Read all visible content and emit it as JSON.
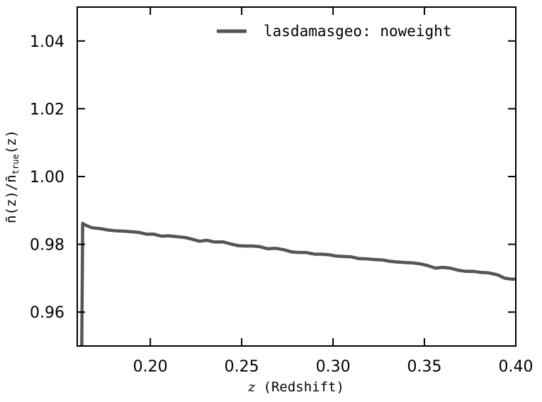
{
  "chart_data": {
    "type": "line",
    "title": "",
    "xlabel": "z (Redshift)",
    "xlabel_italic": "z",
    "xlabel_mono": " (Redshift)",
    "ylabel": "n̄(z)/n̄true(z)",
    "ylabel_main": "n̄(z)/n̄",
    "ylabel_sub": "true",
    "ylabel_end": "(z)",
    "xlim": [
      0.16,
      0.4
    ],
    "ylim": [
      0.95,
      1.05
    ],
    "xticks": [
      0.2,
      0.25,
      0.3,
      0.35,
      0.4
    ],
    "xtick_labels": [
      "0.20",
      "0.25",
      "0.30",
      "0.35",
      "0.40"
    ],
    "yticks": [
      0.96,
      0.98,
      1.0,
      1.02,
      1.04
    ],
    "ytick_labels": [
      "0.96",
      "0.98",
      "1.00",
      "1.02",
      "1.04"
    ],
    "grid": false,
    "legend_position": "top-right",
    "series": [
      {
        "name": "lasdamasgeo:  noweight",
        "color": "#555555",
        "x": [
          0.1625,
          0.163,
          0.164,
          0.168,
          0.173,
          0.177,
          0.181,
          0.185,
          0.19,
          0.194,
          0.198,
          0.202,
          0.206,
          0.21,
          0.214,
          0.219,
          0.223,
          0.227,
          0.231,
          0.235,
          0.24,
          0.244,
          0.248,
          0.252,
          0.256,
          0.26,
          0.264,
          0.269,
          0.273,
          0.277,
          0.281,
          0.285,
          0.29,
          0.294,
          0.298,
          0.302,
          0.306,
          0.31,
          0.314,
          0.319,
          0.323,
          0.327,
          0.331,
          0.335,
          0.34,
          0.344,
          0.348,
          0.352,
          0.356,
          0.36,
          0.364,
          0.369,
          0.373,
          0.377,
          0.381,
          0.385,
          0.39,
          0.394,
          0.398,
          0.4
        ],
        "y": [
          0.95,
          0.9862,
          0.9858,
          0.9849,
          0.9846,
          0.9842,
          0.984,
          0.9839,
          0.9837,
          0.9835,
          0.983,
          0.983,
          0.9824,
          0.9825,
          0.9823,
          0.982,
          0.9815,
          0.9809,
          0.9812,
          0.9807,
          0.9807,
          0.9801,
          0.9796,
          0.9795,
          0.9795,
          0.9793,
          0.9787,
          0.9788,
          0.9784,
          0.9778,
          0.9776,
          0.9776,
          0.9771,
          0.9771,
          0.9769,
          0.9765,
          0.9764,
          0.9763,
          0.9758,
          0.9757,
          0.9755,
          0.9754,
          0.975,
          0.9748,
          0.9746,
          0.9745,
          0.9742,
          0.9737,
          0.973,
          0.9732,
          0.973,
          0.9723,
          0.972,
          0.972,
          0.9717,
          0.9716,
          0.971,
          0.97,
          0.9697,
          0.9697
        ]
      }
    ]
  }
}
